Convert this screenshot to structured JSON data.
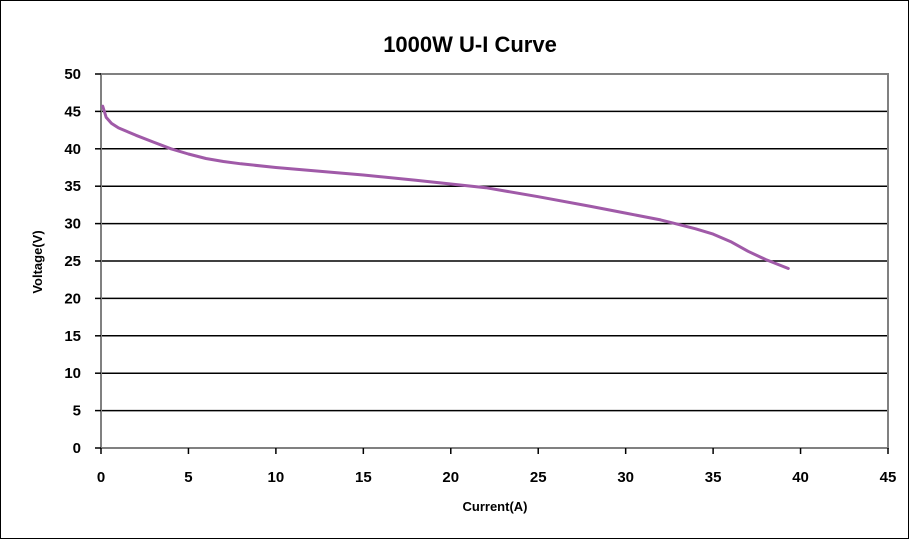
{
  "chart_data": {
    "type": "line",
    "title": "1000W U-I Curve",
    "xlabel": "Current(A)",
    "ylabel": "Voltage(V)",
    "xlim": [
      0,
      45
    ],
    "ylim": [
      0,
      50
    ],
    "x_ticks": [
      0,
      5,
      10,
      15,
      20,
      25,
      30,
      35,
      40,
      45
    ],
    "y_ticks": [
      0,
      5,
      10,
      15,
      20,
      25,
      30,
      35,
      40,
      45,
      50
    ],
    "grid": "horizontal",
    "legend": "none",
    "series": [
      {
        "color": "#a05aa8",
        "x": [
          0.1,
          0.3,
          0.6,
          1,
          2,
          3,
          4,
          5,
          6,
          7,
          8,
          10,
          12,
          15,
          18,
          20,
          22,
          25,
          28,
          30,
          32,
          33,
          34,
          35,
          36,
          37,
          38,
          39.3
        ],
        "y": [
          45.7,
          44.2,
          43.4,
          42.8,
          41.8,
          40.9,
          40.0,
          39.3,
          38.7,
          38.3,
          38.0,
          37.5,
          37.1,
          36.5,
          35.8,
          35.3,
          34.8,
          33.6,
          32.3,
          31.4,
          30.5,
          29.9,
          29.3,
          28.6,
          27.6,
          26.3,
          25.2,
          24.0
        ]
      }
    ]
  }
}
